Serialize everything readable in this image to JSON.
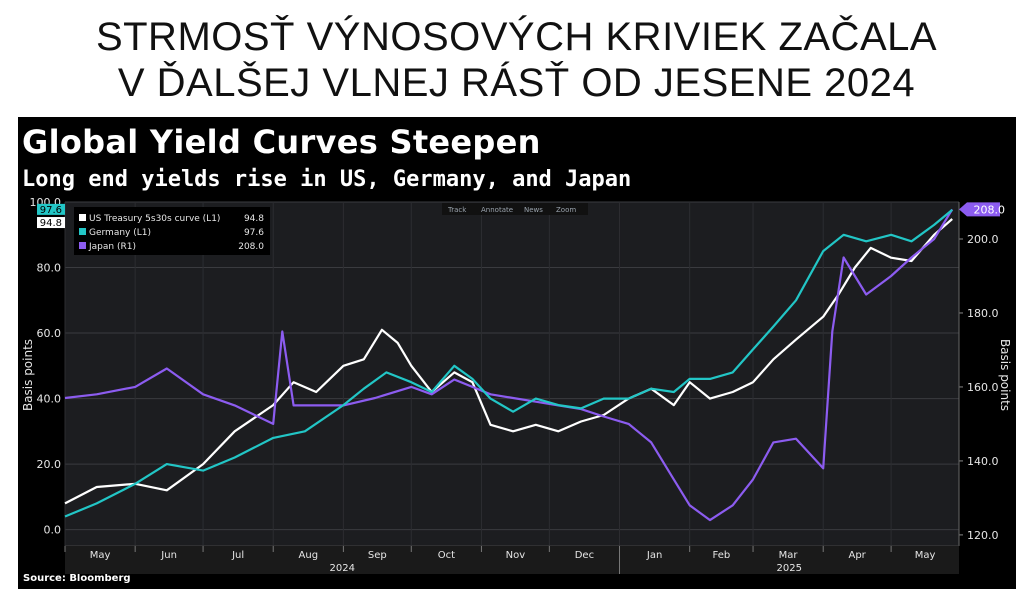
{
  "headline": {
    "line1": "STRMOSŤ VÝNOSOVÝCH KRIVIEK ZAČALA",
    "line2": "V ĎALŠEJ VLNEJ RÁSŤ OD JESENE 2024"
  },
  "source": "Source: Bloomberg",
  "toolbar": {
    "track": "Track",
    "annotate": "Annotate",
    "news": "News",
    "zoom": "Zoom"
  },
  "chart_data": {
    "type": "line",
    "title": "Global Yield Curves Steepen",
    "subtitle": "Long end yields rise in US, Germany, and Japan",
    "ylabel_left": "Basis points",
    "ylabel_right": "Basis points",
    "ylim_left": [
      -5,
      100
    ],
    "ylim_right": [
      117,
      210
    ],
    "yticks_left": [
      "0.0",
      "20.0",
      "40.0",
      "60.0",
      "80.0",
      "100.0"
    ],
    "yticks_right": [
      "120.0",
      "140.0",
      "160.0",
      "180.0",
      "200.0"
    ],
    "x_months": [
      "May",
      "Jun",
      "Jul",
      "Aug",
      "Sep",
      "Oct",
      "Nov",
      "Dec",
      "Jan",
      "Feb",
      "Mar",
      "Apr",
      "May"
    ],
    "x_years": [
      "2024",
      "2025"
    ],
    "x_range": [
      "2024-05-01",
      "2025-05-31"
    ],
    "grid": true,
    "legend_position": "top-left",
    "series": [
      {
        "name": "US Treasury 5s30s curve  (L1)",
        "last_value": "94.8",
        "axis": "left",
        "color": "#ffffff",
        "points": [
          [
            "2024-05-01",
            8
          ],
          [
            "2024-05-15",
            13
          ],
          [
            "2024-06-01",
            14
          ],
          [
            "2024-06-15",
            12
          ],
          [
            "2024-07-01",
            20
          ],
          [
            "2024-07-15",
            30
          ],
          [
            "2024-08-01",
            38
          ],
          [
            "2024-08-10",
            45
          ],
          [
            "2024-08-20",
            42
          ],
          [
            "2024-09-01",
            50
          ],
          [
            "2024-09-10",
            52
          ],
          [
            "2024-09-18",
            61
          ],
          [
            "2024-09-25",
            57
          ],
          [
            "2024-10-01",
            50
          ],
          [
            "2024-10-10",
            42
          ],
          [
            "2024-10-20",
            48
          ],
          [
            "2024-10-28",
            45
          ],
          [
            "2024-11-05",
            32
          ],
          [
            "2024-11-15",
            30
          ],
          [
            "2024-11-25",
            32
          ],
          [
            "2024-12-05",
            30
          ],
          [
            "2024-12-15",
            33
          ],
          [
            "2024-12-25",
            35
          ],
          [
            "2025-01-05",
            40
          ],
          [
            "2025-01-15",
            43
          ],
          [
            "2025-01-25",
            38
          ],
          [
            "2025-02-01",
            45
          ],
          [
            "2025-02-10",
            40
          ],
          [
            "2025-02-20",
            42
          ],
          [
            "2025-03-01",
            45
          ],
          [
            "2025-03-10",
            52
          ],
          [
            "2025-03-20",
            58
          ],
          [
            "2025-04-01",
            65
          ],
          [
            "2025-04-08",
            72
          ],
          [
            "2025-04-15",
            80
          ],
          [
            "2025-04-22",
            86
          ],
          [
            "2025-05-01",
            83
          ],
          [
            "2025-05-10",
            82
          ],
          [
            "2025-05-20",
            90
          ],
          [
            "2025-05-28",
            94.8
          ]
        ]
      },
      {
        "name": "Germany (L1)",
        "last_value": "97.6",
        "axis": "left",
        "color": "#22c6c6",
        "points": [
          [
            "2024-05-01",
            4
          ],
          [
            "2024-05-15",
            8
          ],
          [
            "2024-06-01",
            14
          ],
          [
            "2024-06-15",
            20
          ],
          [
            "2024-07-01",
            18
          ],
          [
            "2024-07-15",
            22
          ],
          [
            "2024-08-01",
            28
          ],
          [
            "2024-08-15",
            30
          ],
          [
            "2024-09-01",
            38
          ],
          [
            "2024-09-10",
            43
          ],
          [
            "2024-09-20",
            48
          ],
          [
            "2024-10-01",
            45
          ],
          [
            "2024-10-10",
            42
          ],
          [
            "2024-10-20",
            50
          ],
          [
            "2024-10-28",
            46
          ],
          [
            "2024-11-05",
            40
          ],
          [
            "2024-11-15",
            36
          ],
          [
            "2024-11-25",
            40
          ],
          [
            "2024-12-05",
            38
          ],
          [
            "2024-12-15",
            37
          ],
          [
            "2024-12-25",
            40
          ],
          [
            "2025-01-05",
            40
          ],
          [
            "2025-01-15",
            43
          ],
          [
            "2025-01-25",
            42
          ],
          [
            "2025-02-01",
            46
          ],
          [
            "2025-02-10",
            46
          ],
          [
            "2025-02-20",
            48
          ],
          [
            "2025-03-01",
            55
          ],
          [
            "2025-03-10",
            62
          ],
          [
            "2025-03-20",
            70
          ],
          [
            "2025-04-01",
            85
          ],
          [
            "2025-04-10",
            90
          ],
          [
            "2025-04-20",
            88
          ],
          [
            "2025-05-01",
            90
          ],
          [
            "2025-05-10",
            88
          ],
          [
            "2025-05-20",
            93
          ],
          [
            "2025-05-28",
            97.6
          ]
        ]
      },
      {
        "name": "Japan (R1)",
        "last_value": "208.0",
        "axis": "right",
        "color": "#8c5cf0",
        "points": [
          [
            "2024-05-01",
            157
          ],
          [
            "2024-05-15",
            158
          ],
          [
            "2024-06-01",
            160
          ],
          [
            "2024-06-15",
            165
          ],
          [
            "2024-07-01",
            158
          ],
          [
            "2024-07-15",
            155
          ],
          [
            "2024-08-01",
            150
          ],
          [
            "2024-08-05",
            175
          ],
          [
            "2024-08-10",
            155
          ],
          [
            "2024-08-20",
            155
          ],
          [
            "2024-09-01",
            155
          ],
          [
            "2024-09-15",
            157
          ],
          [
            "2024-10-01",
            160
          ],
          [
            "2024-10-10",
            158
          ],
          [
            "2024-10-20",
            162
          ],
          [
            "2024-10-28",
            160
          ],
          [
            "2024-11-05",
            158
          ],
          [
            "2024-11-15",
            157
          ],
          [
            "2024-11-25",
            156
          ],
          [
            "2024-12-05",
            155
          ],
          [
            "2024-12-15",
            154
          ],
          [
            "2024-12-25",
            152
          ],
          [
            "2025-01-05",
            150
          ],
          [
            "2025-01-15",
            145
          ],
          [
            "2025-01-25",
            135
          ],
          [
            "2025-02-01",
            128
          ],
          [
            "2025-02-10",
            124
          ],
          [
            "2025-02-20",
            128
          ],
          [
            "2025-03-01",
            135
          ],
          [
            "2025-03-10",
            145
          ],
          [
            "2025-03-20",
            146
          ],
          [
            "2025-04-01",
            138
          ],
          [
            "2025-04-05",
            175
          ],
          [
            "2025-04-10",
            195
          ],
          [
            "2025-04-20",
            185
          ],
          [
            "2025-05-01",
            190
          ],
          [
            "2025-05-10",
            195
          ],
          [
            "2025-05-20",
            200
          ],
          [
            "2025-05-28",
            208
          ]
        ]
      }
    ]
  }
}
